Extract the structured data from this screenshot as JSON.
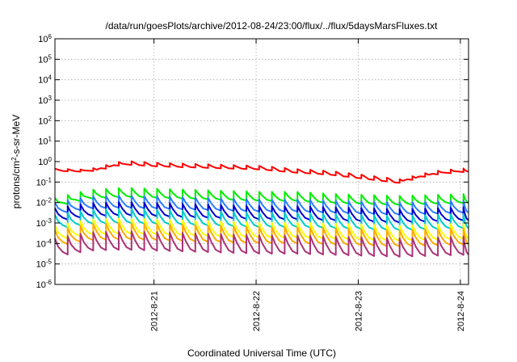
{
  "chart_data": {
    "type": "line",
    "title": "/data/run/goesPlots/archive/2012-08-24/23:00/flux/../flux/5daysMarsFluxes.txt",
    "xlabel": "Coordinated Universal Time (UTC)",
    "ylabel": {
      "base": "protons/cm",
      "sup": "2",
      "rest": "-s-sr-MeV"
    },
    "y_scale": "log",
    "ylim_exp": [
      -6,
      6
    ],
    "y_ticks": [
      {
        "base": "10",
        "exp": "-6",
        "value": -6
      },
      {
        "base": "10",
        "exp": "-5",
        "value": -5
      },
      {
        "base": "10",
        "exp": "-4",
        "value": -4
      },
      {
        "base": "10",
        "exp": "-3",
        "value": -3
      },
      {
        "base": "10",
        "exp": "-2",
        "value": -2
      },
      {
        "base": "10",
        "exp": "-1",
        "value": -1
      },
      {
        "base": "10",
        "exp": "0",
        "value": 0
      },
      {
        "base": "10",
        "exp": "1",
        "value": 1
      },
      {
        "base": "10",
        "exp": "2",
        "value": 2
      },
      {
        "base": "10",
        "exp": "3",
        "value": 3
      },
      {
        "base": "10",
        "exp": "4",
        "value": 4
      },
      {
        "base": "10",
        "exp": "5",
        "value": 5
      },
      {
        "base": "10",
        "exp": "6",
        "value": 6
      }
    ],
    "xlim_days": [
      0,
      4.05
    ],
    "x_ticks": [
      {
        "label": "2012-8-21",
        "day": 0.97
      },
      {
        "label": "2012-8-22",
        "day": 1.97
      },
      {
        "label": "2012-8-23",
        "day": 2.97
      },
      {
        "label": "2012-8-24",
        "day": 3.97
      }
    ],
    "grid": true,
    "series": [
      {
        "color": "#ff0000",
        "base": [
          -0.4,
          -0.45,
          -0.05,
          -0.15,
          -0.2,
          -0.25,
          -0.3,
          -0.45,
          -0.55,
          -0.75,
          -0.95,
          -0.55,
          -0.4
        ],
        "amp": 0.18,
        "jump_at": 0.3
      },
      {
        "color": "#00ee00",
        "base": [
          -2.0,
          -1.6,
          -1.5,
          -1.55,
          -1.6,
          -1.65,
          -1.7,
          -1.7,
          -1.8,
          -1.85,
          -1.9,
          -1.85,
          -1.8
        ],
        "amp": 0.45
      },
      {
        "color": "#2a7fff",
        "base": [
          -2.3,
          -2.0,
          -1.95,
          -2.0,
          -2.05,
          -2.1,
          -2.15,
          -2.15,
          -2.2,
          -2.25,
          -2.3,
          -2.25,
          -2.2
        ],
        "amp": 0.6
      },
      {
        "color": "#0000cc",
        "base": [
          -2.6,
          -2.35,
          -2.3,
          -2.35,
          -2.4,
          -2.45,
          -2.5,
          -2.5,
          -2.55,
          -2.6,
          -2.65,
          -2.6,
          -2.55
        ],
        "amp": 0.65
      },
      {
        "color": "#00cccc",
        "base": [
          -2.95,
          -2.7,
          -2.65,
          -2.7,
          -2.75,
          -2.8,
          -2.85,
          -2.85,
          -2.9,
          -2.95,
          -3.0,
          -2.95,
          -2.9
        ],
        "amp": 0.7
      },
      {
        "color": "#ffff00",
        "base": [
          -3.5,
          -3.2,
          -3.15,
          -3.2,
          -3.25,
          -3.3,
          -3.35,
          -3.35,
          -3.4,
          -3.45,
          -3.5,
          -3.45,
          -3.4
        ],
        "amp": 0.75
      },
      {
        "color": "#ffaa00",
        "base": [
          -3.75,
          -3.45,
          -3.4,
          -3.45,
          -3.5,
          -3.55,
          -3.6,
          -3.6,
          -3.65,
          -3.7,
          -3.75,
          -3.7,
          -3.65
        ],
        "amp": 0.8
      },
      {
        "color": "#aa3377",
        "base": [
          -4.2,
          -3.9,
          -3.85,
          -3.9,
          -3.95,
          -4.0,
          -4.05,
          -4.05,
          -4.1,
          -4.15,
          -4.2,
          -4.15,
          -4.1
        ],
        "amp": 0.9
      }
    ],
    "cycle_days": 0.125
  }
}
